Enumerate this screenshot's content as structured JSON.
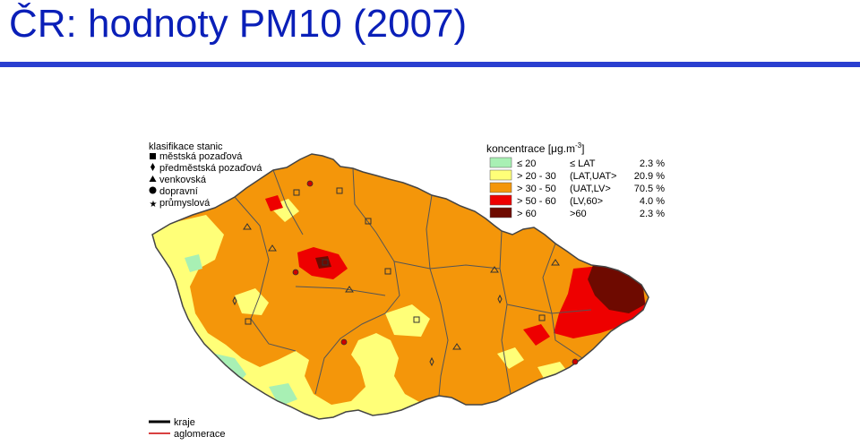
{
  "title": "ČR: hodnoty PM10 (2007)",
  "station_legend": {
    "heading": "klasifikace stanic",
    "items": [
      {
        "symbol": "square-icon",
        "label": "městská pozaďová"
      },
      {
        "symbol": "diamond-icon",
        "label": "předměstská pozaďová"
      },
      {
        "symbol": "triangle-icon",
        "label": "venkovská"
      },
      {
        "symbol": "circle-icon",
        "label": "dopravní"
      },
      {
        "symbol": "star-icon",
        "label": "průmyslová"
      }
    ]
  },
  "concentration_legend": {
    "heading_text": "koncentrace [μg.m",
    "heading_exp": "-3",
    "heading_close": "]",
    "classes": [
      {
        "range": "≤ 20",
        "limit": "≤ LAT",
        "percent": "2.3 %",
        "color": "#a8f0b4"
      },
      {
        "range": "> 20 - 30",
        "limit": "(LAT,UAT>",
        "percent": "20.9 %",
        "color": "#ffff78"
      },
      {
        "range": "> 30 - 50",
        "limit": "(UAT,LV>",
        "percent": "70.5 %",
        "color": "#f4960a"
      },
      {
        "range": "> 50 - 60",
        "limit": "(LV,60>",
        "percent": "4.0 %",
        "color": "#ee0000"
      },
      {
        "range": "> 60",
        "limit": ">60",
        "percent": "2.3 %",
        "color": "#6e0a00"
      }
    ]
  },
  "boundary_legend": [
    {
      "label": "kraje",
      "color": "#000000"
    },
    {
      "label": "aglomerace",
      "color": "#cc0000"
    }
  ]
}
